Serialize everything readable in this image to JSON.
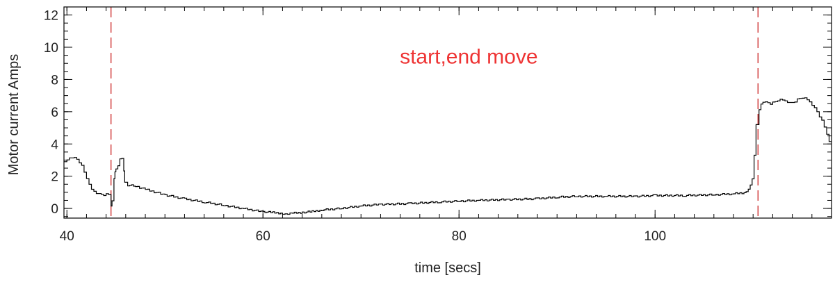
{
  "chart_data": {
    "type": "line",
    "title": "",
    "xlabel": "time [secs]",
    "ylabel": "Motor current Amps",
    "xlim": [
      39.7,
      118.0
    ],
    "ylim": [
      -0.6,
      12.5
    ],
    "grid": false,
    "legend": "none",
    "x_ticks": [
      {
        "value": 40,
        "label": "40"
      },
      {
        "value": 60,
        "label": "60"
      },
      {
        "value": 80,
        "label": "80"
      },
      {
        "value": 100,
        "label": "100"
      }
    ],
    "y_ticks": [
      {
        "value": 0,
        "label": "0"
      },
      {
        "value": 2,
        "label": "2"
      },
      {
        "value": 4,
        "label": "4"
      },
      {
        "value": 6,
        "label": "6"
      },
      {
        "value": 8,
        "label": "8"
      },
      {
        "value": 10,
        "label": "10"
      },
      {
        "value": 12,
        "label": "12"
      }
    ],
    "x_minor_step": 2,
    "y_minor_step": 0.5,
    "series": [
      {
        "style": "step",
        "color": "#000000",
        "x": [
          39.7,
          40.0,
          40.5,
          41.0,
          41.5,
          42.0,
          42.5,
          43.0,
          43.5,
          44.0,
          44.5,
          44.6,
          44.8,
          44.9,
          45.0,
          45.2,
          45.4,
          45.6,
          45.8,
          45.9,
          46.2,
          47.0,
          48.0,
          50.0,
          52.0,
          54.0,
          56.0,
          58.0,
          60.0,
          61.0,
          62.0,
          62.5,
          63.0,
          64.0,
          65.0,
          66.0,
          68.0,
          70.0,
          72.0,
          75.0,
          78.0,
          80.0,
          82.0,
          85.0,
          88.0,
          90.0,
          92.0,
          95.0,
          98.0,
          100.0,
          103.0,
          106.0,
          108.0,
          109.5,
          110.1,
          110.3,
          110.6,
          111.0,
          111.5,
          112.0,
          112.5,
          113.0,
          113.5,
          114.0,
          114.5,
          115.0,
          115.5,
          116.0,
          116.5,
          117.0,
          117.5,
          118.0
        ],
        "y": [
          2.9,
          3.0,
          3.15,
          3.1,
          2.8,
          2.1,
          1.3,
          0.95,
          0.85,
          0.85,
          0.9,
          -0.5,
          1.5,
          2.2,
          2.3,
          2.5,
          2.9,
          3.3,
          2.9,
          1.7,
          1.45,
          1.4,
          1.2,
          0.85,
          0.6,
          0.4,
          0.2,
          0.0,
          -0.2,
          -0.25,
          -0.3,
          -0.35,
          -0.3,
          -0.25,
          -0.2,
          -0.1,
          0.0,
          0.15,
          0.25,
          0.3,
          0.4,
          0.45,
          0.5,
          0.55,
          0.6,
          0.7,
          0.75,
          0.75,
          0.75,
          0.8,
          0.8,
          0.85,
          0.9,
          1.0,
          2.0,
          4.5,
          6.0,
          6.6,
          6.55,
          6.5,
          6.7,
          6.8,
          6.6,
          6.5,
          6.7,
          6.9,
          6.85,
          6.5,
          6.1,
          5.6,
          4.9,
          3.9
        ]
      }
    ],
    "vlines": [
      {
        "x": 44.5,
        "color": "#cc2222",
        "dash": "dashed"
      },
      {
        "x": 110.5,
        "color": "#cc2222",
        "dash": "dashed"
      }
    ],
    "annotations": [
      {
        "text": "start,end move",
        "x": 81.0,
        "y": 9.5,
        "color": "#ee3333"
      }
    ]
  }
}
